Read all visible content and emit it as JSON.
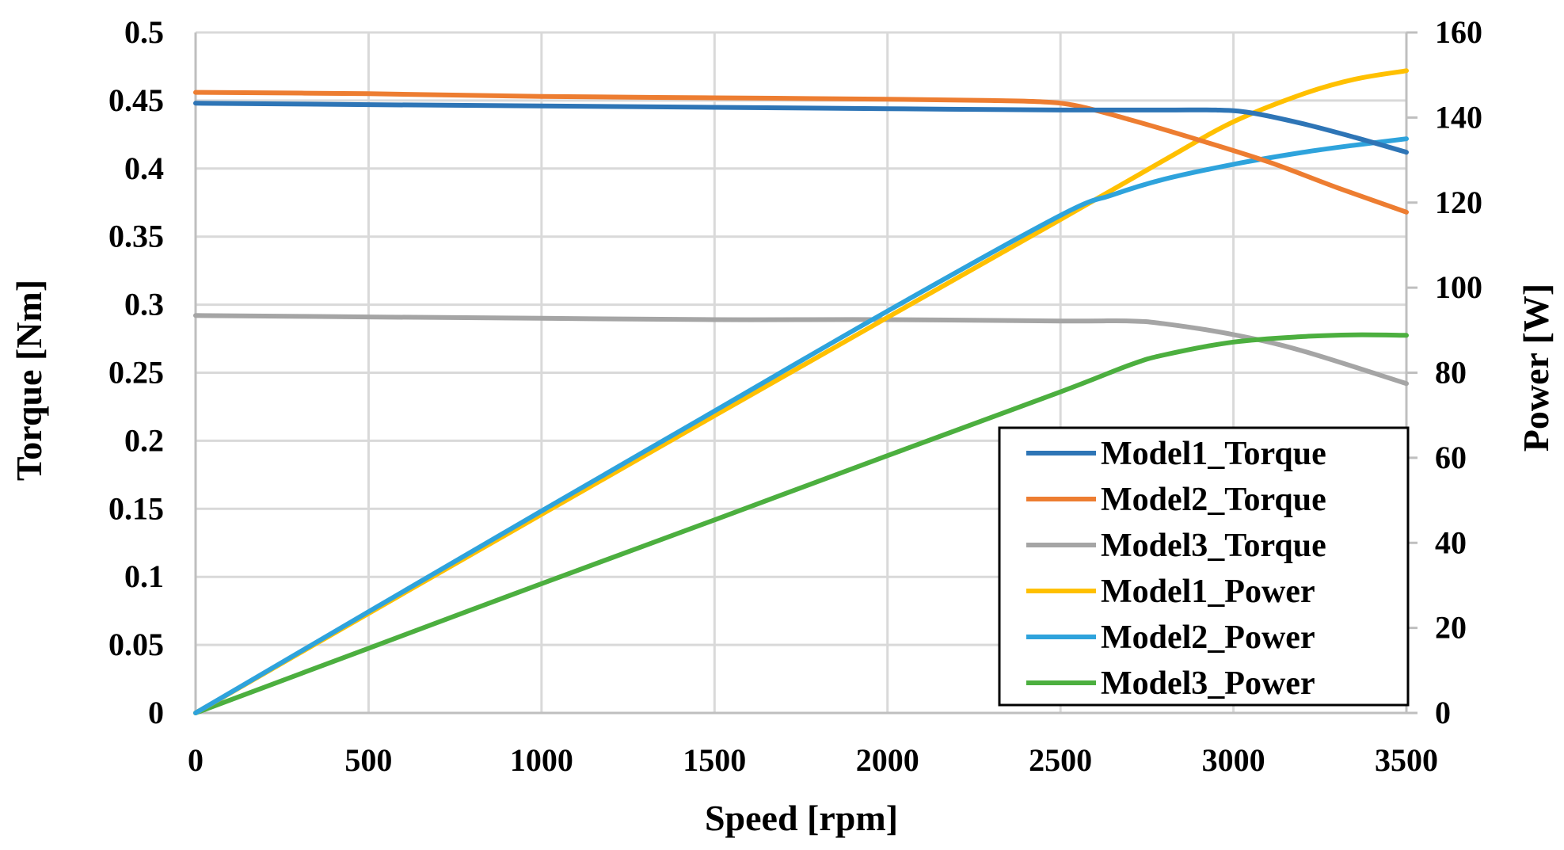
{
  "chart_data": {
    "type": "line",
    "title": "",
    "xlabel": "Speed [rpm]",
    "ylabel": "Torque  [Nm]",
    "y2label": "Power [W]",
    "xlim": [
      0,
      3500
    ],
    "ylim": [
      0,
      0.5
    ],
    "y2lim": [
      0,
      160
    ],
    "x_ticks": [
      0,
      500,
      1000,
      1500,
      2000,
      2500,
      3000,
      3500
    ],
    "y_ticks": [
      0,
      0.05,
      0.1,
      0.15,
      0.2,
      0.25,
      0.3,
      0.35,
      0.4,
      0.45,
      0.5
    ],
    "y_tick_labels": [
      "0",
      "0.05",
      "0.1",
      "0.15",
      "0.2",
      "0.25",
      "0.3",
      "0.35",
      "0.4",
      "0.45",
      "0.5"
    ],
    "y2_ticks": [
      0,
      20,
      40,
      60,
      80,
      100,
      120,
      140,
      160
    ],
    "grid": true,
    "legend_position": "lower-right",
    "series": [
      {
        "name": "Model1_Torque",
        "axis": "left",
        "color": "#2e75b6",
        "x": [
          0,
          500,
          1000,
          1500,
          2000,
          2500,
          2800,
          2950,
          3050,
          3200,
          3350,
          3500
        ],
        "y": [
          0.448,
          0.447,
          0.446,
          0.445,
          0.444,
          0.443,
          0.443,
          0.443,
          0.441,
          0.433,
          0.423,
          0.412
        ]
      },
      {
        "name": "Model2_Torque",
        "axis": "left",
        "color": "#ed7d31",
        "x": [
          0,
          500,
          1000,
          1500,
          2000,
          2300,
          2450,
          2550,
          2700,
          2900,
          3100,
          3300,
          3500
        ],
        "y": [
          0.456,
          0.455,
          0.453,
          0.452,
          0.451,
          0.45,
          0.449,
          0.446,
          0.436,
          0.421,
          0.405,
          0.386,
          0.368
        ]
      },
      {
        "name": "Model3_Torque",
        "axis": "left",
        "color": "#a5a5a5",
        "x": [
          0,
          500,
          1000,
          1500,
          2000,
          2500,
          2700,
          2800,
          3000,
          3200,
          3500
        ],
        "y": [
          0.292,
          0.291,
          0.29,
          0.289,
          0.289,
          0.288,
          0.288,
          0.286,
          0.278,
          0.266,
          0.242
        ]
      },
      {
        "name": "Model1_Power",
        "axis": "right",
        "color": "#ffc000",
        "x": [
          0,
          500,
          1000,
          1500,
          2000,
          2500,
          2800,
          3000,
          3200,
          3350,
          3500
        ],
        "y": [
          0,
          23.4,
          46.7,
          69.9,
          93.0,
          116.0,
          130.0,
          139.0,
          145.5,
          149.0,
          151.0
        ]
      },
      {
        "name": "Model2_Power",
        "axis": "right",
        "color": "#2ea3dc",
        "x": [
          0,
          500,
          1000,
          1500,
          2000,
          2500,
          2650,
          2800,
          3000,
          3200,
          3350,
          3500
        ],
        "y": [
          0,
          23.8,
          47.5,
          71.0,
          94.5,
          117.0,
          121.8,
          125.5,
          129.0,
          131.8,
          133.5,
          135.0
        ]
      },
      {
        "name": "Model3_Power",
        "axis": "right",
        "color": "#4caf3f",
        "x": [
          0,
          500,
          1000,
          1500,
          2000,
          2500,
          2700,
          2800,
          3000,
          3200,
          3350,
          3500
        ],
        "y": [
          0,
          15.2,
          30.4,
          45.4,
          60.5,
          75.5,
          81.8,
          84.2,
          87.2,
          88.5,
          88.9,
          88.8
        ]
      }
    ]
  }
}
